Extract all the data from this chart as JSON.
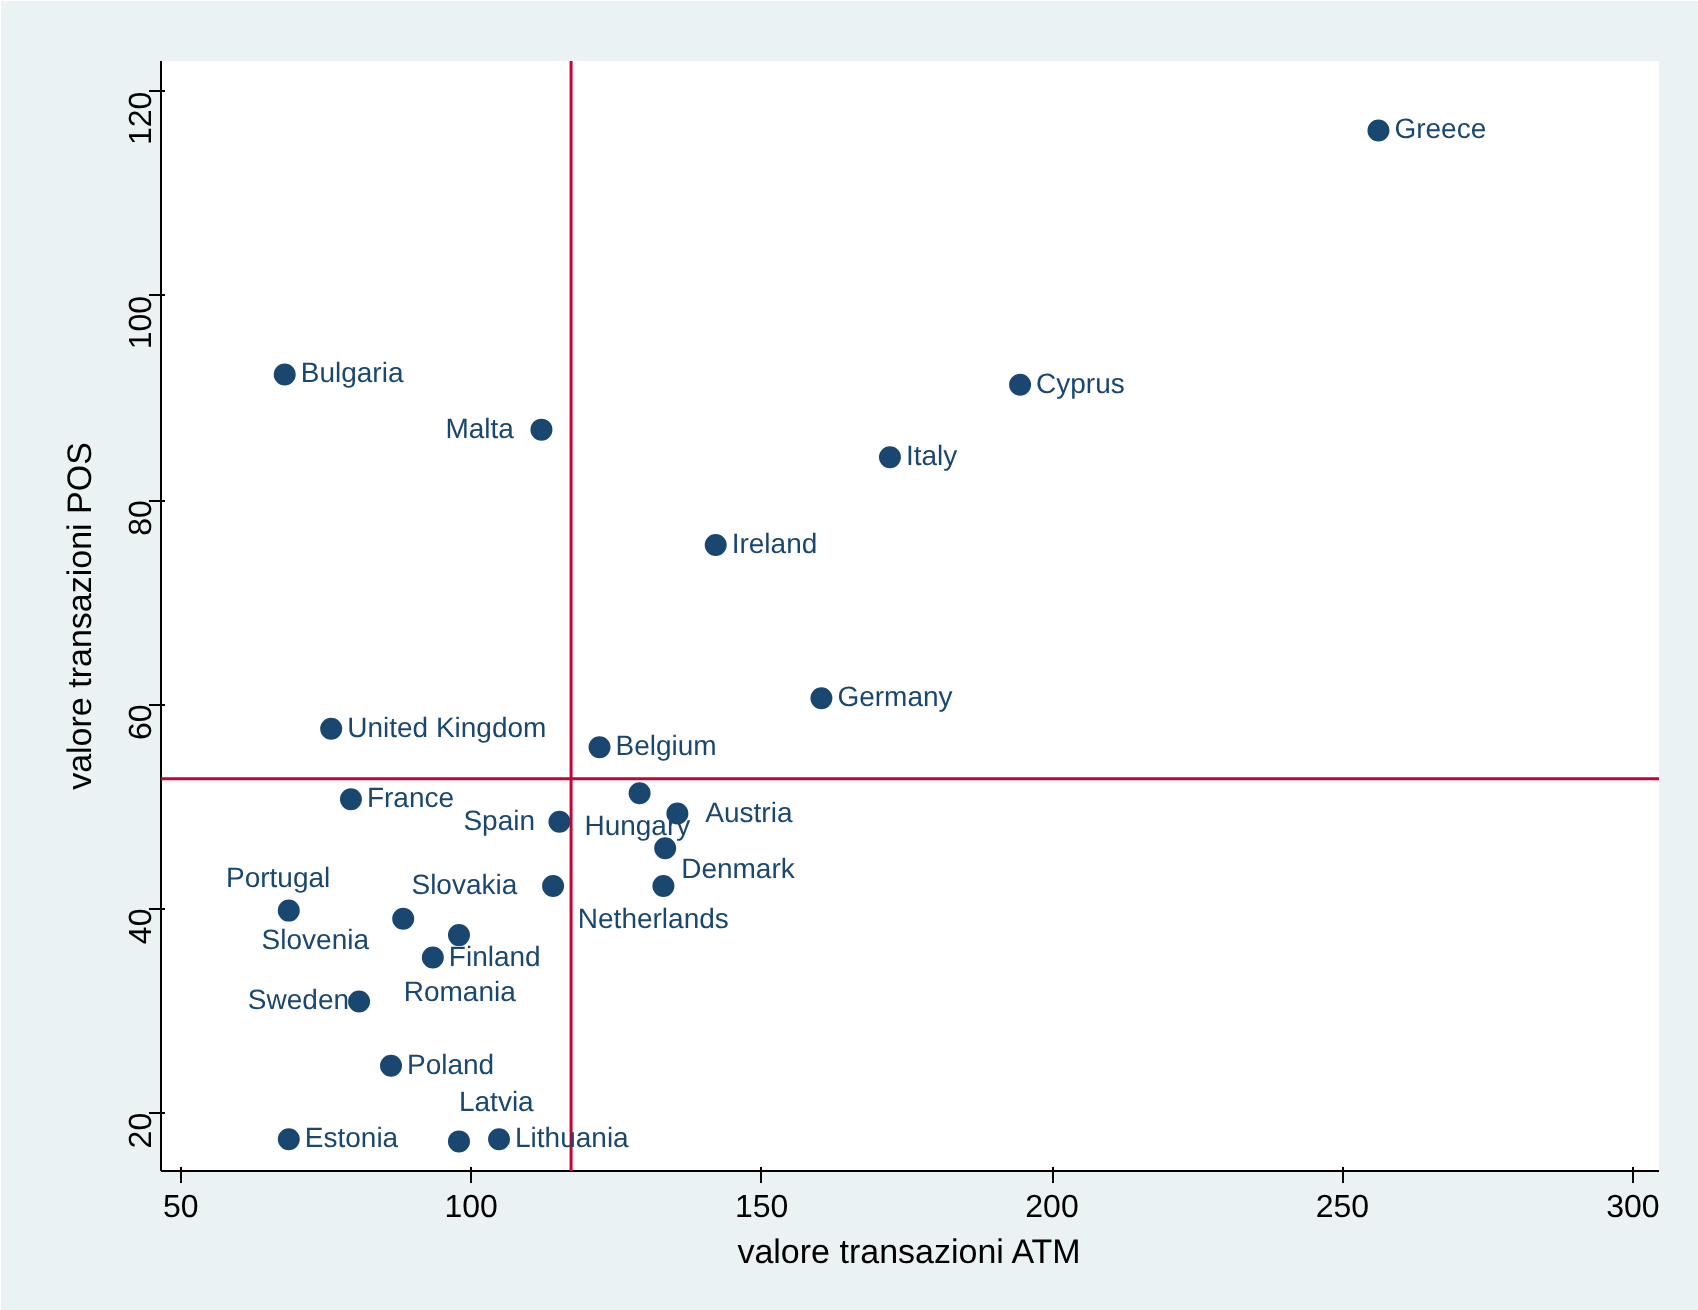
{
  "chart_data": {
    "type": "scatter",
    "xlabel": "valore transazioni ATM",
    "ylabel": "valore transazioni POS",
    "x": [
      256.2,
      67.9,
      194.5,
      112.1,
      172.1,
      142.1,
      160.3,
      75.9,
      122.1,
      79.3,
      129.0,
      115.2,
      135.5,
      133.4,
      114.1,
      133.1,
      68.6,
      88.3,
      97.9,
      93.4,
      80.7,
      86.2,
      68.6,
      97.9,
      104.8
    ],
    "values": [
      116.2,
      92.3,
      91.3,
      86.9,
      84.2,
      75.6,
      60.6,
      57.6,
      55.8,
      50.7,
      51.3,
      48.5,
      49.3,
      45.9,
      42.2,
      42.2,
      39.8,
      39.0,
      37.4,
      35.2,
      30.9,
      24.6,
      17.4,
      17.2,
      17.4
    ],
    "color": "#1a476f",
    "marker": "circle",
    "grid": false,
    "xlim": [
      46.6,
      304.5
    ],
    "ylim": [
      14.3,
      123.0
    ],
    "xticks": [
      50,
      100,
      150,
      200,
      250,
      300
    ],
    "yticks": [
      20,
      40,
      60,
      80,
      100,
      120
    ],
    "ref_lines": [
      {
        "axis": "x",
        "value": 117.2,
        "color": "#c10534"
      },
      {
        "axis": "y",
        "value": 52.7,
        "color": "#c10534"
      }
    ],
    "annotations": [
      {
        "text": "Greece",
        "x": 256.2,
        "y": 116.2
      },
      {
        "text": "Bulgaria",
        "x": 67.9,
        "y": 92.3
      },
      {
        "text": "Cyprus",
        "x": 194.5,
        "y": 91.3
      },
      {
        "text": "Malta",
        "x": 112.1,
        "y": 86.9
      },
      {
        "text": "Italy",
        "x": 172.1,
        "y": 84.2
      },
      {
        "text": "Ireland",
        "x": 142.1,
        "y": 75.6
      },
      {
        "text": "Germany",
        "x": 160.3,
        "y": 60.6
      },
      {
        "text": "United Kingdom",
        "x": 75.9,
        "y": 57.6
      },
      {
        "text": "Belgium",
        "x": 122.1,
        "y": 55.8
      },
      {
        "text": "France",
        "x": 79.3,
        "y": 50.7
      },
      {
        "text": "Hungary",
        "x": 129.0,
        "y": 51.3
      },
      {
        "text": "Spain",
        "x": 115.2,
        "y": 48.5
      },
      {
        "text": "Austria",
        "x": 135.5,
        "y": 49.3
      },
      {
        "text": "Denmark",
        "x": 133.4,
        "y": 45.9
      },
      {
        "text": "Slovakia",
        "x": 114.1,
        "y": 42.2
      },
      {
        "text": "Netherlands",
        "x": 133.1,
        "y": 42.2
      },
      {
        "text": "Portugal",
        "x": 68.6,
        "y": 39.8
      },
      {
        "text": "Slovenia",
        "x": 88.3,
        "y": 39.0
      },
      {
        "text": "Romania",
        "x": 97.9,
        "y": 37.4
      },
      {
        "text": "Finland",
        "x": 93.4,
        "y": 35.2
      },
      {
        "text": "Sweden",
        "x": 80.7,
        "y": 30.9
      },
      {
        "text": "Poland",
        "x": 86.2,
        "y": 24.6
      },
      {
        "text": "Estonia",
        "x": 68.6,
        "y": 17.4
      },
      {
        "text": "Latvia",
        "x": 97.9,
        "y": 17.2
      },
      {
        "text": "Lithuania",
        "x": 104.8,
        "y": 17.4
      }
    ]
  }
}
